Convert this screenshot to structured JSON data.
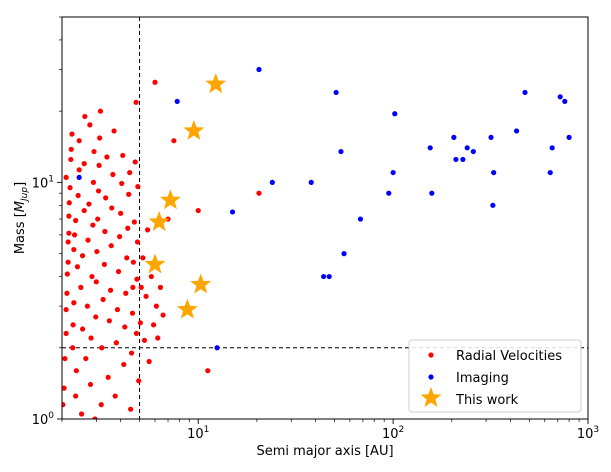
{
  "chart_data": {
    "type": "scatter",
    "xscale": "log",
    "yscale": "log",
    "xlim": [
      2,
      1000
    ],
    "ylim": [
      1,
      50
    ],
    "xlabel": "Semi major axis [AU]",
    "ylabel_prefix": "Mass [",
    "ylabel_symbol": "M",
    "ylabel_sub": "Jup",
    "ylabel_suffix": "]",
    "xticks": [
      {
        "value": 10,
        "base": "10",
        "exp": "1"
      },
      {
        "value": 100,
        "base": "10",
        "exp": "2"
      },
      {
        "value": 1000,
        "base": "10",
        "exp": "3"
      }
    ],
    "yticks": [
      {
        "value": 1,
        "base": "10",
        "exp": "0"
      },
      {
        "value": 10,
        "base": "10",
        "exp": "1"
      }
    ],
    "guide_lines": {
      "x": 5,
      "y": 2,
      "style": "dashed"
    },
    "legend_position": "lower-right",
    "series": [
      {
        "name": "Radial Velocities",
        "marker": "circle",
        "color": "#ff0000",
        "points": [
          [
            2.02,
            1.15
          ],
          [
            2.05,
            1.35
          ],
          [
            2.07,
            1.8
          ],
          [
            2.1,
            2.3
          ],
          [
            2.1,
            2.9
          ],
          [
            2.12,
            3.4
          ],
          [
            2.13,
            4.1
          ],
          [
            2.15,
            4.6
          ],
          [
            2.15,
            5.6
          ],
          [
            2.17,
            6.1
          ],
          [
            2.17,
            7.2
          ],
          [
            2.18,
            8.2
          ],
          [
            2.2,
            9.5
          ],
          [
            2.22,
            12.5
          ],
          [
            2.23,
            13.8
          ],
          [
            2.25,
            16.0
          ],
          [
            2.1,
            10.5
          ],
          [
            2.27,
            2.0
          ],
          [
            2.28,
            2.5
          ],
          [
            2.3,
            3.1
          ],
          [
            2.3,
            5.2
          ],
          [
            2.32,
            6.0
          ],
          [
            2.35,
            6.9
          ],
          [
            2.35,
            1.25
          ],
          [
            2.37,
            1.6
          ],
          [
            2.4,
            4.4
          ],
          [
            2.42,
            8.8
          ],
          [
            2.45,
            11.3
          ],
          [
            2.45,
            15.0
          ],
          [
            2.5,
            3.6
          ],
          [
            2.52,
            1.05
          ],
          [
            2.55,
            2.4
          ],
          [
            2.55,
            4.9
          ],
          [
            2.6,
            7.6
          ],
          [
            2.6,
            12.0
          ],
          [
            2.62,
            19.0
          ],
          [
            2.65,
            1.8
          ],
          [
            2.7,
            3.0
          ],
          [
            2.72,
            5.7
          ],
          [
            2.75,
            8.1
          ],
          [
            2.78,
            17.5
          ],
          [
            2.8,
            1.4
          ],
          [
            2.82,
            2.2
          ],
          [
            2.85,
            4.0
          ],
          [
            2.88,
            6.6
          ],
          [
            2.9,
            10.0
          ],
          [
            2.92,
            13.5
          ],
          [
            2.95,
            1.0
          ],
          [
            2.98,
            2.7
          ],
          [
            3.0,
            3.8
          ],
          [
            3.02,
            5.1
          ],
          [
            3.05,
            7.0
          ],
          [
            3.08,
            9.2
          ],
          [
            3.1,
            11.8
          ],
          [
            3.12,
            15.4
          ],
          [
            3.15,
            20.0
          ],
          [
            3.18,
            1.15
          ],
          [
            3.2,
            2.0
          ],
          [
            3.25,
            3.2
          ],
          [
            3.3,
            4.5
          ],
          [
            3.32,
            6.2
          ],
          [
            3.35,
            8.6
          ],
          [
            3.4,
            12.8
          ],
          [
            3.45,
            1.5
          ],
          [
            3.5,
            2.6
          ],
          [
            3.55,
            3.5
          ],
          [
            3.58,
            5.4
          ],
          [
            3.6,
            7.8
          ],
          [
            3.65,
            10.8
          ],
          [
            3.7,
            16.5
          ],
          [
            3.75,
            1.25
          ],
          [
            3.8,
            2.1
          ],
          [
            3.85,
            2.9
          ],
          [
            3.9,
            4.2
          ],
          [
            3.95,
            5.9
          ],
          [
            4.0,
            7.4
          ],
          [
            4.05,
            9.9
          ],
          [
            4.1,
            13.0
          ],
          [
            4.15,
            1.7
          ],
          [
            4.2,
            2.45
          ],
          [
            4.25,
            3.4
          ],
          [
            4.3,
            4.8
          ],
          [
            4.35,
            6.4
          ],
          [
            4.4,
            8.9
          ],
          [
            4.45,
            11.0
          ],
          [
            4.5,
            1.1
          ],
          [
            4.55,
            1.9
          ],
          [
            4.6,
            2.8
          ],
          [
            4.62,
            3.6
          ],
          [
            4.65,
            4.6
          ],
          [
            4.7,
            6.8
          ],
          [
            4.75,
            12.2
          ],
          [
            4.8,
            21.8
          ],
          [
            4.82,
            2.3
          ],
          [
            4.85,
            3.9
          ],
          [
            4.88,
            5.6
          ],
          [
            4.9,
            9.6
          ],
          [
            4.95,
            1.45
          ],
          [
            5.05,
            2.55
          ],
          [
            5.1,
            3.6
          ],
          [
            5.2,
            4.8
          ],
          [
            5.3,
            2.15
          ],
          [
            5.4,
            3.3
          ],
          [
            5.5,
            6.3
          ],
          [
            5.6,
            1.75
          ],
          [
            5.75,
            4.0
          ],
          [
            5.9,
            2.5
          ],
          [
            6.0,
            26.5
          ],
          [
            6.1,
            3.0
          ],
          [
            6.2,
            2.2
          ],
          [
            6.4,
            3.6
          ],
          [
            6.6,
            2.75
          ],
          [
            7.0,
            7.0
          ],
          [
            7.5,
            15.0
          ],
          [
            10.0,
            7.6
          ],
          [
            11.2,
            1.6
          ],
          [
            20.5,
            9.0
          ]
        ]
      },
      {
        "name": "Imaging",
        "marker": "circle",
        "color": "#0000ff",
        "points": [
          [
            2.45,
            10.5
          ],
          [
            7.8,
            22.0
          ],
          [
            12.5,
            2.0
          ],
          [
            15.0,
            7.5
          ],
          [
            20.5,
            30.0
          ],
          [
            24.0,
            10.0
          ],
          [
            38.0,
            10.0
          ],
          [
            44.0,
            4.0
          ],
          [
            47.0,
            4.0
          ],
          [
            51.0,
            24.0
          ],
          [
            54.0,
            13.5
          ],
          [
            56.0,
            5.0
          ],
          [
            68.0,
            7.0
          ],
          [
            95.0,
            9.0
          ],
          [
            100.0,
            11.0
          ],
          [
            102.0,
            19.5
          ],
          [
            155.0,
            14.0
          ],
          [
            158.0,
            9.0
          ],
          [
            205.0,
            15.5
          ],
          [
            210.0,
            12.5
          ],
          [
            228.0,
            12.5
          ],
          [
            240.0,
            14.0
          ],
          [
            258.0,
            13.5
          ],
          [
            318.0,
            15.5
          ],
          [
            325.0,
            8.0
          ],
          [
            328.0,
            11.0
          ],
          [
            430.0,
            16.5
          ],
          [
            475.0,
            24.0
          ],
          [
            640.0,
            11.0
          ],
          [
            655.0,
            14.0
          ],
          [
            720.0,
            23.0
          ],
          [
            760.0,
            22.0
          ],
          [
            800.0,
            15.5
          ]
        ]
      },
      {
        "name": "This work",
        "marker": "star",
        "color": "#ffa500",
        "points": [
          [
            6.0,
            4.5
          ],
          [
            6.3,
            6.8
          ],
          [
            7.2,
            8.4
          ],
          [
            8.8,
            2.9
          ],
          [
            9.5,
            16.5
          ],
          [
            10.3,
            3.7
          ],
          [
            12.3,
            26.0
          ]
        ]
      }
    ]
  }
}
